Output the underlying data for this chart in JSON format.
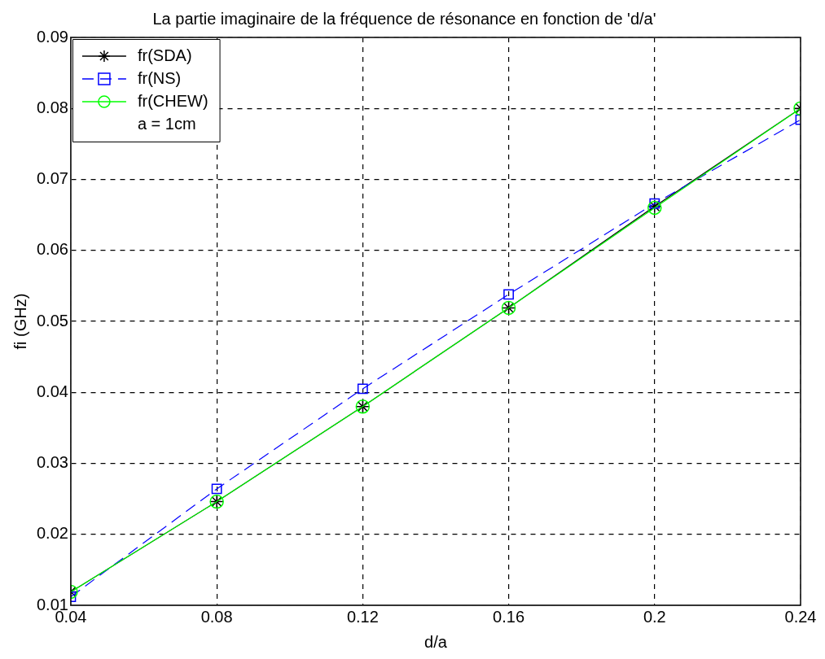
{
  "chart_data": {
    "type": "line",
    "title": "La partie imaginaire de la fréquence de résonance en fonction de 'd/a'",
    "xlabel": "d/a",
    "ylabel": "fi (GHz)",
    "x": [
      0.04,
      0.08,
      0.12,
      0.16,
      0.2,
      0.24
    ],
    "series": [
      {
        "name": "fr(SDA)",
        "color": "#000000",
        "marker": "cross",
        "line_style": "solid",
        "values": [
          0.0119,
          0.0246,
          0.038,
          0.0519,
          0.0662,
          0.08
        ]
      },
      {
        "name": "fr(NS)",
        "color": "#0000ff",
        "marker": "square",
        "line_style": "dashed",
        "values": [
          0.0112,
          0.0264,
          0.0405,
          0.0538,
          0.0666,
          0.0784
        ]
      },
      {
        "name": "fr(CHEW)",
        "color": "#00ff00",
        "marker": "circle",
        "line_style": "solid",
        "values": [
          0.0119,
          0.0246,
          0.038,
          0.0519,
          0.066,
          0.08
        ]
      }
    ],
    "annotations": [
      "a = 1cm"
    ],
    "xlim": [
      0.04,
      0.24
    ],
    "xticks": [
      0.04,
      0.08,
      0.12,
      0.16,
      0.2,
      0.24
    ],
    "ylim": [
      0.01,
      0.09
    ],
    "yticks": [
      0.01,
      0.02,
      0.03,
      0.04,
      0.05,
      0.06,
      0.07,
      0.08,
      0.09
    ],
    "grid": true,
    "legend": "top left"
  }
}
